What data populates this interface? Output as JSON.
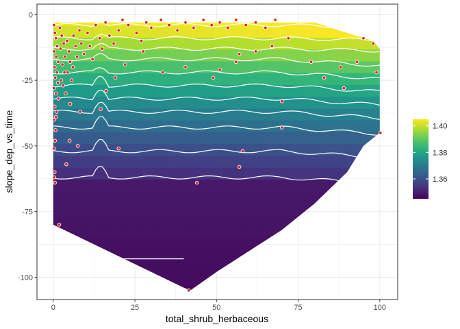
{
  "chart_data": {
    "type": "heatmap",
    "xlabel": "total_shrub_herbaceous",
    "ylabel": "slope_dep_vs_time",
    "xlim": [
      -5,
      105.5
    ],
    "ylim": [
      -108.5,
      4
    ],
    "x_ticks": [
      0,
      25,
      50,
      75,
      100
    ],
    "x_tick_labels": [
      "0",
      "25",
      "50",
      "75",
      "100"
    ],
    "y_ticks": [
      0,
      -25,
      -50,
      -75,
      -100
    ],
    "y_tick_labels": [
      "0",
      "-25",
      "-50",
      "-75",
      "-100"
    ],
    "grid": true,
    "colorscale": "viridis",
    "colors": {
      "point_fill": "#e31a1c",
      "point_stroke": "#ffffff",
      "contour": "#ffffff",
      "panel_border": "#333333",
      "grid": "#ebebeb"
    },
    "fill_range": [
      1.345,
      1.405
    ],
    "legend": {
      "placement": "right",
      "ticks": [
        1.36,
        1.38,
        1.4
      ],
      "tick_labels": [
        "1.36",
        "1.38",
        "1.40"
      ]
    },
    "surface_domain": {
      "left_top_y": -3,
      "left_bottom_y": -80,
      "right_edge_x": 100,
      "bottom_edge": [
        [
          0,
          -80
        ],
        [
          10,
          -86
        ],
        [
          20,
          -92
        ],
        [
          30,
          -98
        ],
        [
          40,
          -104
        ],
        [
          42,
          -105
        ],
        [
          50,
          -98
        ],
        [
          60,
          -90
        ],
        [
          70,
          -82
        ],
        [
          80,
          -72
        ],
        [
          90,
          -60
        ],
        [
          95,
          -50
        ],
        [
          100,
          -45
        ]
      ],
      "top_edge": [
        [
          0,
          -3
        ],
        [
          80,
          -3
        ],
        [
          85,
          -5
        ],
        [
          90,
          -7
        ],
        [
          98,
          -10
        ],
        [
          100,
          -13
        ]
      ]
    },
    "contour_levels_y": [
      -4,
      -9,
      -13,
      -17,
      -22,
      -27,
      -32,
      -37,
      -43,
      -52,
      -62
    ],
    "points": [
      [
        0.2,
        -4
      ],
      [
        0.5,
        -7
      ],
      [
        0.8,
        -9
      ],
      [
        1.2,
        -12
      ],
      [
        0.3,
        -14
      ],
      [
        0.9,
        -16
      ],
      [
        1.5,
        -18
      ],
      [
        0.4,
        -20
      ],
      [
        1.1,
        -22
      ],
      [
        0.6,
        -24
      ],
      [
        1.4,
        -26
      ],
      [
        0.2,
        -28
      ],
      [
        0.8,
        -30
      ],
      [
        1.6,
        -32
      ],
      [
        0.4,
        -35
      ],
      [
        1.0,
        -37
      ],
      [
        0.3,
        -40
      ],
      [
        0.7,
        -44
      ],
      [
        0.5,
        -48
      ],
      [
        0.2,
        -51
      ],
      [
        0.4,
        -60
      ],
      [
        0.3,
        -62
      ],
      [
        0.5,
        -64
      ],
      [
        2.0,
        -5
      ],
      [
        2.6,
        -8
      ],
      [
        3.2,
        -11
      ],
      [
        2.2,
        -13
      ],
      [
        3.6,
        -16
      ],
      [
        2.8,
        -19
      ],
      [
        3.4,
        -22
      ],
      [
        2.4,
        -25
      ],
      [
        3.0,
        -27
      ],
      [
        4.2,
        -10
      ],
      [
        4.8,
        -14
      ],
      [
        5.2,
        -18
      ],
      [
        4.4,
        -22
      ],
      [
        5.6,
        -25
      ],
      [
        6.2,
        -8
      ],
      [
        6.8,
        -12
      ],
      [
        7.3,
        -16
      ],
      [
        6.0,
        -20
      ],
      [
        8.0,
        -6
      ],
      [
        8.6,
        -11
      ],
      [
        9.4,
        -15
      ],
      [
        10.5,
        -7
      ],
      [
        11.2,
        -12
      ],
      [
        12.0,
        -17
      ],
      [
        13.0,
        -4
      ],
      [
        14.2,
        -9
      ],
      [
        15.0,
        -13
      ],
      [
        16.0,
        -3
      ],
      [
        17.2,
        -8
      ],
      [
        18.5,
        -11
      ],
      [
        20.0,
        -6
      ],
      [
        21.2,
        -2
      ],
      [
        23.0,
        -4
      ],
      [
        25.5,
        -7
      ],
      [
        27.0,
        -10
      ],
      [
        28.5,
        -3
      ],
      [
        30.0,
        -5
      ],
      [
        33.0,
        -2
      ],
      [
        35.5,
        -4
      ],
      [
        38.0,
        -6
      ],
      [
        40.5,
        -3
      ],
      [
        43.0,
        -5
      ],
      [
        46.0,
        -2
      ],
      [
        48.5,
        -4
      ],
      [
        51.0,
        -3
      ],
      [
        53.5,
        -5
      ],
      [
        56.0,
        -2
      ],
      [
        59.0,
        -4
      ],
      [
        62.0,
        -3
      ],
      [
        65.0,
        -5
      ],
      [
        68.0,
        -2
      ],
      [
        3.8,
        -30
      ],
      [
        5.2,
        -34
      ],
      [
        8.2,
        -37
      ],
      [
        14.5,
        -36
      ],
      [
        16.2,
        -29
      ],
      [
        19.0,
        -24
      ],
      [
        22.0,
        -19
      ],
      [
        27.5,
        -14
      ],
      [
        33.5,
        -22
      ],
      [
        40.5,
        -20
      ],
      [
        49.0,
        -24
      ],
      [
        51.0,
        -21
      ],
      [
        56.0,
        -18
      ],
      [
        57.0,
        -15
      ],
      [
        62.0,
        -14
      ],
      [
        67.0,
        -12
      ],
      [
        72.0,
        -9
      ],
      [
        79.0,
        -18
      ],
      [
        83.0,
        -24
      ],
      [
        88.0,
        -20
      ],
      [
        89.0,
        -28
      ],
      [
        93.0,
        -18
      ],
      [
        95.0,
        -9
      ],
      [
        98.0,
        -11
      ],
      [
        99.0,
        -22
      ],
      [
        100.2,
        -45
      ],
      [
        70.0,
        -33
      ],
      [
        70.0,
        -43
      ],
      [
        58.0,
        -52
      ],
      [
        57.0,
        -58
      ],
      [
        44.0,
        -64
      ],
      [
        41.5,
        -105
      ],
      [
        5.0,
        -48
      ],
      [
        7.5,
        -50
      ],
      [
        20.0,
        -51
      ],
      [
        4.0,
        -57
      ],
      [
        1.8,
        -80
      ],
      [
        0.8,
        -39
      ]
    ]
  }
}
